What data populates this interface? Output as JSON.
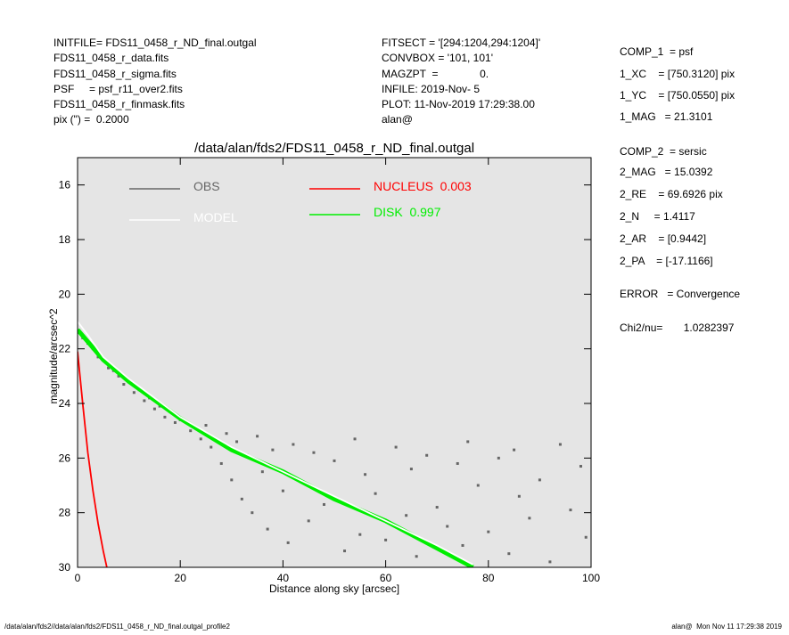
{
  "info_left": [
    "INITFILE= FDS11_0458_r_ND_final.outgal",
    "FDS11_0458_r_data.fits",
    "FDS11_0458_r_sigma.fits",
    "PSF     = psf_r11_over2.fits",
    "FDS11_0458_r_finmask.fits",
    "pix (\") =  0.2000"
  ],
  "info_middle": [
    "FITSECT = '[294:1204,294:1204]'",
    "CONVBOX = '101, 101'",
    "MAGZPT  =              0.",
    "INFILE: 2019-Nov- 5",
    "PLOT: 11-Nov-2019 17:29:38.00",
    "alan@"
  ],
  "info_right": [
    "COMP_1  = psf",
    "1_XC    = [750.3120] pix",
    "1_YC    = [750.0550] pix",
    "1_MAG   = 21.3101",
    "COMP_2  = sersic",
    "2_MAG   = 15.0392",
    "2_RE    = 69.6926 pix",
    "2_N     = 1.4117",
    "2_AR    = [0.9442]",
    "2_PA    = [-17.1166]",
    "ERROR   = Convergence",
    "Chi2/nu=       1.0282397"
  ],
  "footer_left": "/data/alan/fds2//data/alan/fds2/FDS11_0458_r_ND_final.outgal_profile2",
  "footer_right": "alan@  Mon Nov 11 17:29:38 2019",
  "chart_data": {
    "type": "scatter",
    "title": "/data/alan/fds2/FDS11_0458_r_ND_final.outgal",
    "xlabel": "Distance along sky [arcsec]",
    "ylabel": "magnitude/arcsec^2",
    "xlim": [
      0,
      100
    ],
    "ylim": [
      30,
      15
    ],
    "xticks": [
      0,
      20,
      40,
      60,
      80,
      100
    ],
    "yticks": [
      16,
      18,
      20,
      22,
      24,
      26,
      28,
      30
    ],
    "background": "#e5e5e5",
    "series": [
      {
        "name": "OBS",
        "type": "scatter",
        "color": "#666666",
        "x": [
          1,
          2,
          3,
          4,
          5,
          6,
          7,
          8,
          9,
          10,
          11,
          12,
          13,
          14,
          15,
          16,
          17,
          18,
          19,
          20,
          22,
          24,
          25,
          26,
          28,
          29,
          30,
          31,
          32,
          33,
          34,
          35,
          36,
          37,
          38,
          40,
          41,
          42,
          44,
          45,
          46,
          48,
          50,
          52,
          54,
          55,
          56,
          58,
          60,
          62,
          64,
          65,
          66,
          68,
          70,
          72,
          74,
          75,
          76,
          78,
          80,
          82,
          84,
          85,
          86,
          88,
          90,
          92,
          94,
          96,
          98,
          99
        ],
        "values": [
          21.6,
          21.8,
          22.0,
          22.3,
          22.4,
          22.7,
          22.8,
          23.0,
          23.3,
          23.2,
          23.6,
          23.5,
          23.9,
          23.8,
          24.2,
          24.1,
          24.5,
          24.3,
          24.7,
          24.6,
          25.0,
          25.3,
          24.8,
          25.6,
          26.2,
          25.1,
          26.8,
          25.4,
          27.5,
          25.9,
          28.0,
          25.2,
          26.5,
          28.6,
          25.7,
          27.2,
          29.1,
          25.5,
          26.9,
          28.3,
          25.8,
          27.7,
          26.1,
          29.4,
          25.3,
          28.8,
          26.6,
          27.3,
          29.0,
          25.6,
          28.1,
          26.4,
          29.6,
          25.9,
          27.8,
          28.5,
          26.2,
          29.2,
          25.4,
          27.0,
          28.7,
          26.0,
          29.5,
          25.7,
          27.4,
          28.2,
          26.8,
          29.8,
          25.5,
          27.9,
          26.3,
          28.9
        ]
      },
      {
        "name": "MODEL",
        "type": "line",
        "color": "#ffffff",
        "x": [
          0,
          2,
          5,
          10,
          20,
          30,
          40,
          50,
          60,
          70,
          77
        ],
        "values": [
          21.0,
          21.5,
          22.3,
          23.1,
          24.5,
          25.6,
          26.5,
          27.4,
          28.3,
          29.2,
          29.9
        ]
      },
      {
        "name": "NUCLEUS  0.003",
        "type": "line",
        "color": "#ff0000",
        "x": [
          0,
          1,
          2,
          3,
          4,
          5,
          5.7
        ],
        "values": [
          22.1,
          24.0,
          25.8,
          27.2,
          28.4,
          29.4,
          30
        ]
      },
      {
        "name": "DISK  0.997",
        "type": "line",
        "color": "#00ee00",
        "x": [
          0,
          5,
          10,
          20,
          30,
          40,
          50,
          60,
          70,
          77
        ],
        "values": [
          21.3,
          22.4,
          23.2,
          24.55,
          25.7,
          26.5,
          27.5,
          28.3,
          29.3,
          30
        ]
      }
    ]
  }
}
